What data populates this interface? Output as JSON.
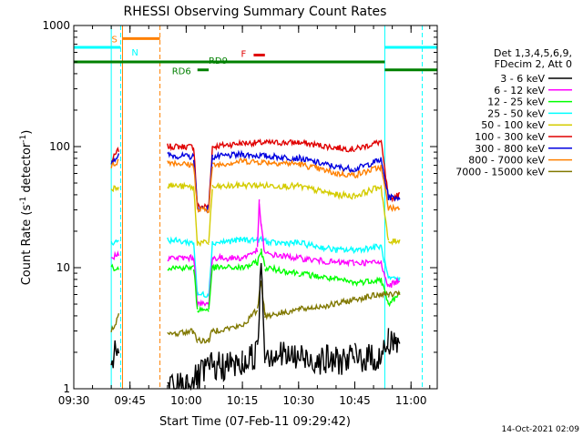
{
  "chart_data": {
    "type": "line",
    "title": "RHESSI Observing Summary Count Rates",
    "xlabel": "Start Time (07-Feb-11 09:29:42)",
    "ylabel_parts": [
      "Count Rate (s",
      "-1",
      " detector",
      "-1",
      ")"
    ],
    "y_scale": "log",
    "ylim": [
      1,
      1000
    ],
    "xlim_minutes": [
      0,
      97
    ],
    "x_tick_labels": [
      "09:30",
      "09:45",
      "10:00",
      "10:15",
      "10:30",
      "10:45",
      "11:00"
    ],
    "y_tick_labels": [
      "1",
      "10",
      "100",
      "1000"
    ],
    "legend": {
      "header": [
        "Det 1,3,4,5,6,9,",
        "FDecim 2, Att 0"
      ],
      "placement": "right",
      "entries": [
        {
          "label": "3 - 6 keV",
          "color": "#000000"
        },
        {
          "label": "6 - 12 keV",
          "color": "#ff00ff"
        },
        {
          "label": "12 - 25 keV",
          "color": "#00ff00"
        },
        {
          "label": "25 - 50 keV",
          "color": "#00ffff"
        },
        {
          "label": "50 - 100 keV",
          "color": "#d4cc00"
        },
        {
          "label": "100 - 300 keV",
          "color": "#e00000"
        },
        {
          "label": "300 - 800 keV",
          "color": "#0000e0"
        },
        {
          "label": "800 - 7000 keV",
          "color": "#ff8000"
        },
        {
          "label": "7000 - 15000 keV",
          "color": "#807800"
        }
      ]
    },
    "series": [
      {
        "name": "100 - 300 keV",
        "color": "#e00000",
        "points": [
          [
            10,
            75
          ],
          [
            12,
            95
          ],
          [
            25,
            100
          ],
          [
            32,
            100
          ],
          [
            33,
            32
          ],
          [
            36,
            32
          ],
          [
            37,
            100
          ],
          [
            45,
            107
          ],
          [
            60,
            108
          ],
          [
            70,
            98
          ],
          [
            75,
            95
          ],
          [
            82,
            110
          ],
          [
            84,
            37
          ],
          [
            87,
            40
          ]
        ]
      },
      {
        "name": "300 - 800 keV",
        "color": "#0000e0",
        "points": [
          [
            10,
            75
          ],
          [
            12,
            85
          ],
          [
            25,
            85
          ],
          [
            32,
            82
          ],
          [
            33,
            31
          ],
          [
            36,
            31
          ],
          [
            37,
            82
          ],
          [
            45,
            86
          ],
          [
            60,
            80
          ],
          [
            70,
            68
          ],
          [
            75,
            65
          ],
          [
            82,
            78
          ],
          [
            84,
            38
          ],
          [
            87,
            38
          ]
        ]
      },
      {
        "name": "800 - 7000 keV",
        "color": "#ff8000",
        "points": [
          [
            10,
            68
          ],
          [
            12,
            77
          ],
          [
            25,
            75
          ],
          [
            32,
            70
          ],
          [
            33,
            30
          ],
          [
            36,
            30
          ],
          [
            37,
            70
          ],
          [
            45,
            76
          ],
          [
            60,
            72
          ],
          [
            70,
            60
          ],
          [
            75,
            58
          ],
          [
            82,
            68
          ],
          [
            84,
            31
          ],
          [
            87,
            31
          ]
        ]
      },
      {
        "name": "50 - 100 keV",
        "color": "#d4cc00",
        "points": [
          [
            10,
            45
          ],
          [
            12,
            47
          ],
          [
            25,
            48
          ],
          [
            32,
            46
          ],
          [
            33,
            16
          ],
          [
            36,
            16
          ],
          [
            37,
            46
          ],
          [
            45,
            48
          ],
          [
            60,
            47
          ],
          [
            70,
            40
          ],
          [
            75,
            39
          ],
          [
            82,
            47
          ],
          [
            84,
            16
          ],
          [
            87,
            17
          ]
        ]
      },
      {
        "name": "25 - 50 keV",
        "color": "#00ffff",
        "points": [
          [
            10,
            16
          ],
          [
            12,
            17
          ],
          [
            25,
            17
          ],
          [
            32,
            16
          ],
          [
            33,
            6
          ],
          [
            36,
            6
          ],
          [
            37,
            16
          ],
          [
            45,
            17
          ],
          [
            51,
            17
          ],
          [
            52,
            16
          ],
          [
            60,
            16
          ],
          [
            70,
            14
          ],
          [
            75,
            14
          ],
          [
            82,
            15
          ],
          [
            84,
            8
          ],
          [
            87,
            8
          ]
        ]
      },
      {
        "name": "6 - 12 keV",
        "color": "#ff00ff",
        "points": [
          [
            10,
            12
          ],
          [
            12,
            13
          ],
          [
            25,
            12
          ],
          [
            32,
            12
          ],
          [
            33,
            5
          ],
          [
            36,
            5
          ],
          [
            37,
            12
          ],
          [
            45,
            12
          ],
          [
            49,
            14
          ],
          [
            49.5,
            35
          ],
          [
            50,
            22
          ],
          [
            51,
            13
          ],
          [
            60,
            12
          ],
          [
            70,
            11
          ],
          [
            75,
            11
          ],
          [
            82,
            11
          ],
          [
            84,
            7
          ],
          [
            87,
            8
          ]
        ]
      },
      {
        "name": "12 - 25 keV",
        "color": "#00ff00",
        "points": [
          [
            10,
            10
          ],
          [
            12,
            10
          ],
          [
            25,
            10
          ],
          [
            32,
            10
          ],
          [
            33,
            4.5
          ],
          [
            36,
            4.5
          ],
          [
            37,
            10
          ],
          [
            45,
            10
          ],
          [
            49,
            11
          ],
          [
            50,
            14
          ],
          [
            51,
            10
          ],
          [
            60,
            9
          ],
          [
            70,
            8
          ],
          [
            75,
            7.5
          ],
          [
            82,
            8
          ],
          [
            84,
            5
          ],
          [
            87,
            6
          ]
        ]
      },
      {
        "name": "7000 - 15000 keV",
        "color": "#807800",
        "points": [
          [
            10,
            3
          ],
          [
            12,
            4
          ],
          [
            25,
            2.8
          ],
          [
            32,
            3
          ],
          [
            33,
            2.5
          ],
          [
            36,
            2.5
          ],
          [
            37,
            3
          ],
          [
            45,
            3.3
          ],
          [
            49,
            4.5
          ],
          [
            50,
            8
          ],
          [
            51,
            4
          ],
          [
            60,
            4.5
          ],
          [
            70,
            5
          ],
          [
            75,
            5.5
          ],
          [
            82,
            6
          ],
          [
            84,
            6
          ],
          [
            87,
            6
          ]
        ]
      },
      {
        "name": "3 - 6 keV",
        "color": "#000000",
        "points": [
          [
            10,
            1.8
          ],
          [
            12,
            2
          ],
          [
            25,
            1
          ],
          [
            33,
            1.2
          ],
          [
            36,
            1.5
          ],
          [
            37,
            1.5
          ],
          [
            45,
            1.6
          ],
          [
            49,
            2
          ],
          [
            50,
            12
          ],
          [
            51,
            2
          ],
          [
            60,
            1.8
          ],
          [
            70,
            1.7
          ],
          [
            75,
            1.8
          ],
          [
            82,
            1.8
          ],
          [
            84,
            2.5
          ],
          [
            87,
            2.5
          ]
        ]
      }
    ],
    "vertical_lines": [
      {
        "x": 10.0,
        "color": "#00ffff",
        "dashed": false
      },
      {
        "x": 12.5,
        "color": "#00ffff",
        "dashed": true
      },
      {
        "x": 13.0,
        "color": "#ff8000",
        "dashed": false
      },
      {
        "x": 23.0,
        "color": "#ff8000",
        "dashed": true
      },
      {
        "x": 83.0,
        "color": "#00ffff",
        "dashed": false
      },
      {
        "x": 93.0,
        "color": "#00ffff",
        "dashed": true
      }
    ],
    "flag_bars": [
      {
        "label": "S",
        "color": "#ff8000",
        "y": 780,
        "x0": 13,
        "x1": 23
      },
      {
        "label": "N",
        "color": "#00ffff",
        "y": 660,
        "x0": 0,
        "x1": 12.5
      },
      {
        "label": "N",
        "color": "#00ffff",
        "y": 660,
        "x0": 83,
        "x1": 97
      },
      {
        "label": "RD9",
        "color": "#008000",
        "y": 500,
        "x0": 0,
        "x1": 83
      },
      {
        "label": "RD9",
        "color": "#008000",
        "y": 430,
        "x0": 83,
        "x1": 97
      },
      {
        "label": "RD6",
        "color": "#008000",
        "y": 430,
        "x0": 33,
        "x1": 36
      },
      {
        "label": "F",
        "color": "#e00000",
        "y": 570,
        "x0": 48,
        "x1": 51
      }
    ],
    "footer_date": "14-Oct-2021 02:09"
  }
}
